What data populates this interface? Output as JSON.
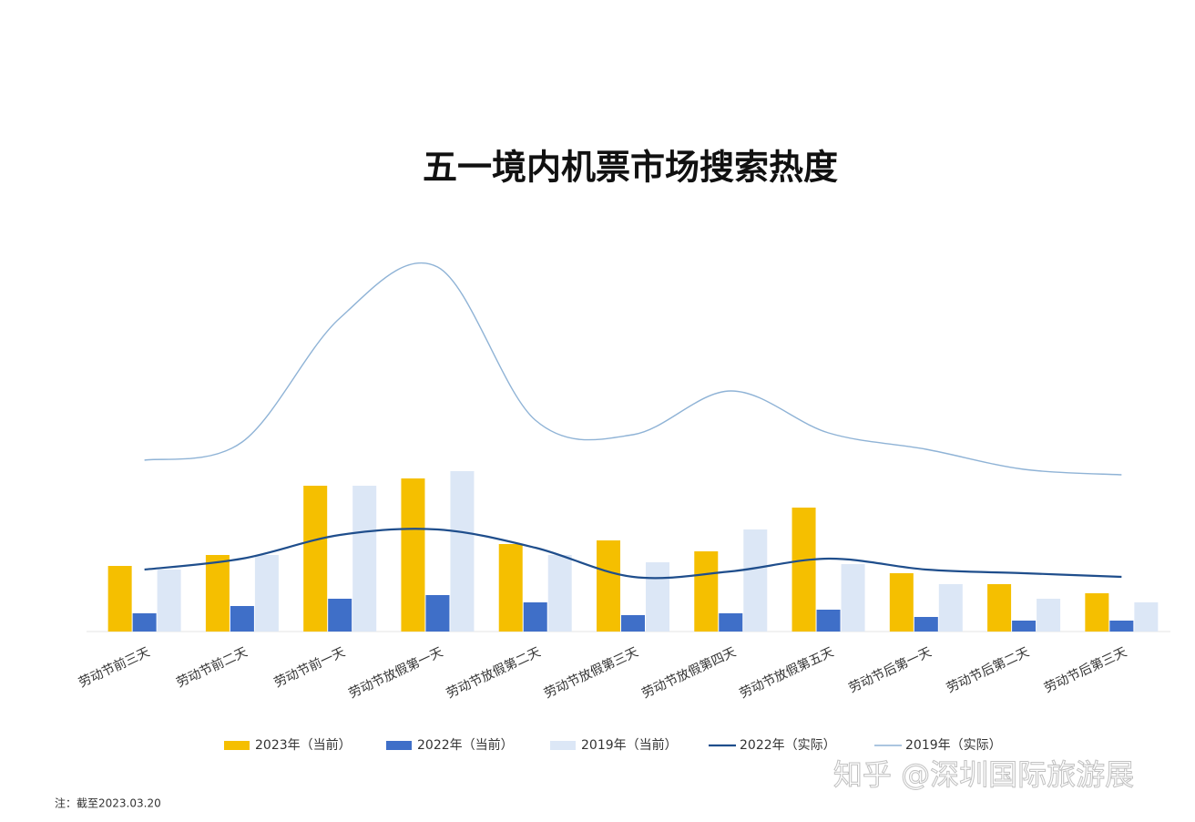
{
  "chart_data": {
    "type": "bar-line",
    "title": "五一境内机票市场搜索热度",
    "categories": [
      "劳动节前三天",
      "劳动节前二天",
      "劳动节前一天",
      "劳动节放假第一天",
      "劳动节放假第二天",
      "劳动节放假第三天",
      "劳动节放假第四天",
      "劳动节放假第五天",
      "劳动节后第一天",
      "劳动节后第二天",
      "劳动节后第三天"
    ],
    "series": [
      {
        "name": "2023年（当前）",
        "kind": "bar",
        "color": "#f5bf00",
        "values": [
          18,
          21,
          40,
          42,
          24,
          25,
          22,
          34,
          16,
          13,
          10.5
        ]
      },
      {
        "name": "2022年（当前）",
        "kind": "bar",
        "color": "#3f6fc8",
        "values": [
          5,
          7,
          9,
          10,
          8,
          4.5,
          5,
          6,
          4,
          3,
          3
        ]
      },
      {
        "name": "2019年（当前）",
        "kind": "bar",
        "color": "#dce7f6",
        "values": [
          17,
          21,
          40,
          44,
          21,
          19,
          28,
          18.5,
          13,
          9,
          8
        ]
      },
      {
        "name": "2022年（实际）",
        "kind": "line",
        "color": "#1f4e8c",
        "width": 2.2,
        "values": [
          17,
          20,
          26.5,
          28,
          23,
          15,
          16.5,
          20,
          17,
          16,
          15
        ]
      },
      {
        "name": "2019年（实际）",
        "kind": "line",
        "color": "#8fb3d6",
        "width": 1.4,
        "values": [
          47,
          52,
          86,
          100,
          58,
          54,
          66,
          54.5,
          50,
          44.5,
          43
        ]
      }
    ]
  },
  "note": "注：截至2023.03.20",
  "watermark": "知乎 @深圳国际旅游展"
}
